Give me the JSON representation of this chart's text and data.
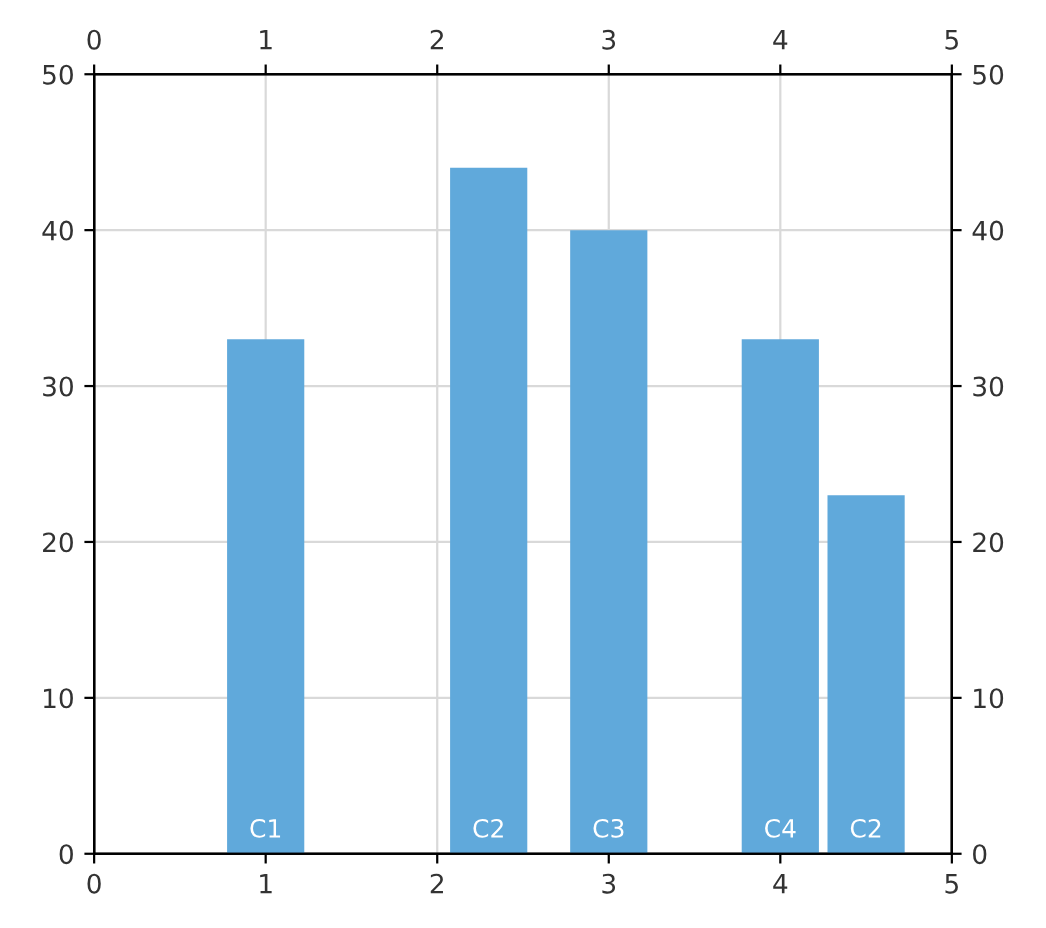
{
  "chart_data": {
    "type": "bar",
    "xlim": [
      0,
      5
    ],
    "xticks": [
      0,
      1,
      2,
      3,
      4,
      5
    ],
    "x2lim": [
      0,
      5
    ],
    "x2ticks": [
      0,
      1,
      2,
      3,
      4,
      5
    ],
    "ylim": [
      0,
      50
    ],
    "yticks": [
      0,
      10,
      20,
      30,
      40,
      50
    ],
    "y2lim": [
      0,
      50
    ],
    "y2ticks": [
      0,
      10,
      20,
      30,
      40,
      50
    ],
    "grid": true,
    "series": [
      {
        "name": "C1",
        "color": "#60a9db",
        "x": [
          1
        ],
        "values": [
          33
        ]
      },
      {
        "name": "C2",
        "color": "#60a9db",
        "x": [
          2.3,
          4.5
        ],
        "values": [
          44,
          23
        ]
      },
      {
        "name": "C3",
        "color": "#60a9db",
        "x": [
          3
        ],
        "values": [
          40
        ]
      },
      {
        "name": "C4",
        "color": "#60a9db",
        "x": [
          4
        ],
        "values": [
          33
        ]
      }
    ]
  }
}
